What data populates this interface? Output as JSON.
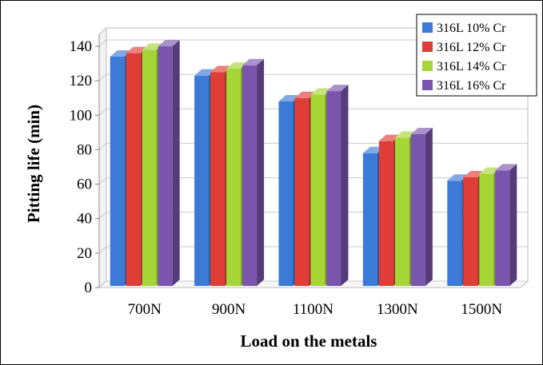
{
  "chart_data": {
    "type": "bar",
    "style": "3d-clustered",
    "categories": [
      "700N",
      "900N",
      "1100N",
      "1300N",
      "1500N"
    ],
    "series": [
      {
        "name": "316L 10% Cr",
        "color": "#3c7ad8",
        "values": [
          134,
          123,
          108,
          78,
          62
        ]
      },
      {
        "name": "316L 12% Cr",
        "color": "#e03c38",
        "values": [
          136,
          125,
          110,
          85,
          64
        ]
      },
      {
        "name": "316L 14% Cr",
        "color": "#a6d636",
        "values": [
          138,
          127,
          112,
          87,
          66
        ]
      },
      {
        "name": "316L 16% Cr",
        "color": "#7a55ad",
        "values": [
          140,
          129,
          114,
          89,
          68
        ]
      }
    ],
    "xlabel": "Load on the metals",
    "ylabel": "Pitting life (min)",
    "ylim": [
      0,
      140
    ],
    "yticks": [
      0,
      20,
      40,
      60,
      80,
      100,
      120,
      140
    ],
    "grid": true,
    "legend_position": "top-right"
  }
}
